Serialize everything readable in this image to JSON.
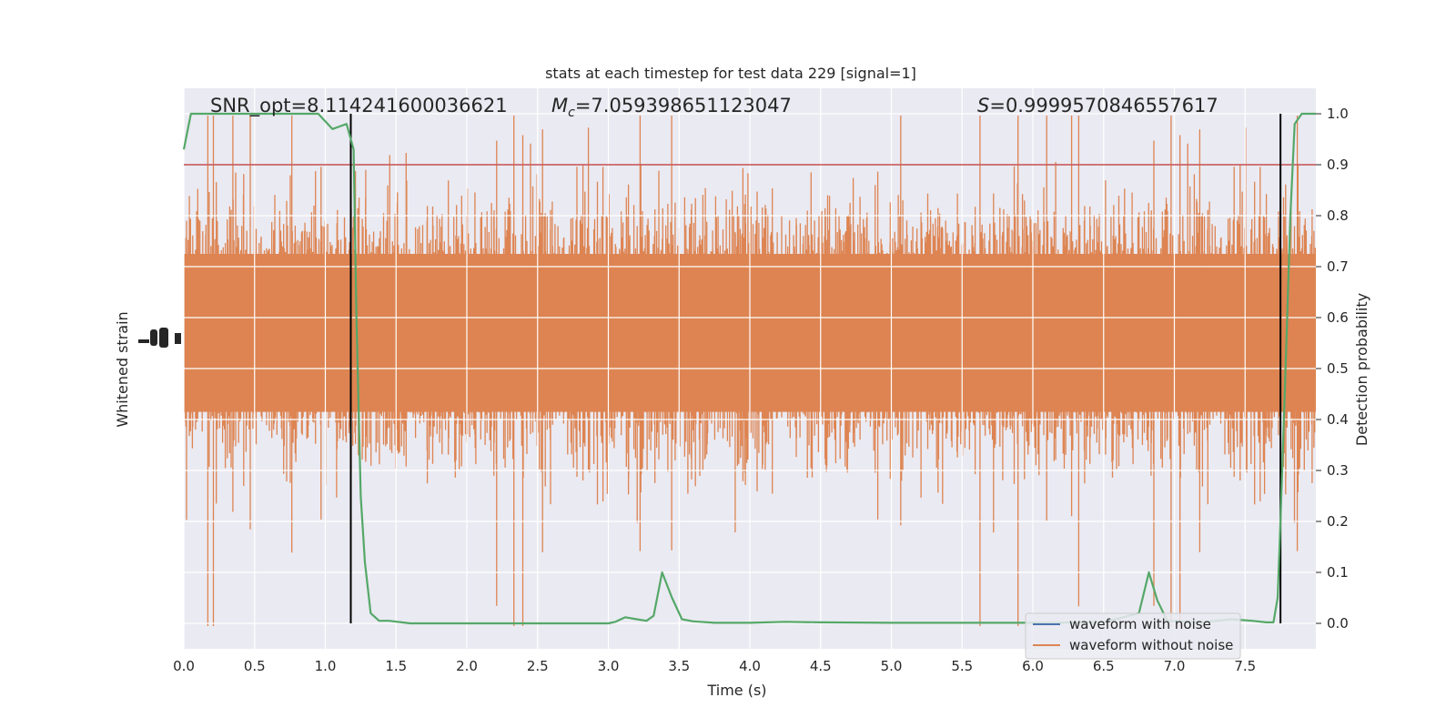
{
  "chart_data": {
    "type": "line",
    "title": "stats at each timestep for test data 229 [signal=1]",
    "xlabel": "Time (s)",
    "ylabel_left": "Whitened strain",
    "ylabel_right": "Detection probability",
    "xlim": [
      0.0,
      8.0
    ],
    "ylim_right": [
      -0.05,
      1.05
    ],
    "x_ticks": [
      "0.0",
      "0.5",
      "1.0",
      "1.5",
      "2.0",
      "2.5",
      "3.0",
      "3.5",
      "4.0",
      "4.5",
      "5.0",
      "5.5",
      "6.0",
      "6.5",
      "7.0",
      "7.5"
    ],
    "x_tick_values": [
      0.0,
      0.5,
      1.0,
      1.5,
      2.0,
      2.5,
      3.0,
      3.5,
      4.0,
      4.5,
      5.0,
      5.5,
      6.0,
      6.5,
      7.0,
      7.5
    ],
    "y_right_ticks": [
      "0.0",
      "0.1",
      "0.2",
      "0.3",
      "0.4",
      "0.5",
      "0.6",
      "0.7",
      "0.8",
      "0.9",
      "1.0"
    ],
    "y_right_tick_values": [
      0.0,
      0.1,
      0.2,
      0.3,
      0.4,
      0.5,
      0.6,
      0.7,
      0.8,
      0.9,
      1.0
    ],
    "annotations": {
      "snr_prefix": "SNR_opt=",
      "snr_value": "8.114241600036621",
      "mc_symbol": "M",
      "mc_subscript": "c",
      "mc_value": "=7.059398651123047",
      "s_symbol": "S",
      "s_value": "=0.9999570846557617"
    },
    "threshold": {
      "value": 0.9,
      "color": "#c44e52"
    },
    "vertical_markers": [
      1.18,
      7.75
    ],
    "legend": {
      "placement": "lower-right",
      "entries": [
        {
          "label": "waveform with noise",
          "color": "#4c72b0"
        },
        {
          "label": "waveform without noise",
          "color": "#dd8452"
        }
      ]
    },
    "strain_color": "#dd8452",
    "strain_band_right": [
      0.415,
      0.725
    ],
    "probability": {
      "color": "#55a868",
      "x": [
        0.0,
        0.05,
        0.15,
        0.3,
        0.5,
        0.7,
        0.9,
        0.95,
        1.0,
        1.05,
        1.1,
        1.15,
        1.2,
        1.22,
        1.25,
        1.28,
        1.32,
        1.38,
        1.45,
        1.6,
        2.0,
        2.5,
        3.0,
        3.05,
        3.12,
        3.2,
        3.27,
        3.32,
        3.38,
        3.45,
        3.52,
        3.6,
        3.75,
        4.0,
        4.25,
        4.5,
        5.0,
        5.5,
        6.0,
        6.5,
        6.75,
        6.82,
        6.88,
        6.95,
        7.2,
        7.4,
        7.55,
        7.65,
        7.7,
        7.73,
        7.75,
        7.78,
        7.82,
        7.85,
        7.9,
        8.0
      ],
      "y": [
        0.93,
        1.0,
        1.0,
        1.0,
        1.0,
        1.0,
        1.0,
        1.0,
        0.985,
        0.97,
        0.975,
        0.98,
        0.93,
        0.6,
        0.25,
        0.12,
        0.02,
        0.005,
        0.005,
        0.0,
        0.0,
        0.0,
        0.0,
        0.003,
        0.012,
        0.008,
        0.005,
        0.015,
        0.1,
        0.05,
        0.008,
        0.004,
        0.001,
        0.001,
        0.003,
        0.002,
        0.001,
        0.001,
        0.001,
        0.002,
        0.02,
        0.1,
        0.045,
        0.005,
        0.002,
        0.008,
        0.005,
        0.002,
        0.002,
        0.05,
        0.2,
        0.45,
        0.8,
        0.98,
        1.0,
        1.0
      ]
    }
  }
}
